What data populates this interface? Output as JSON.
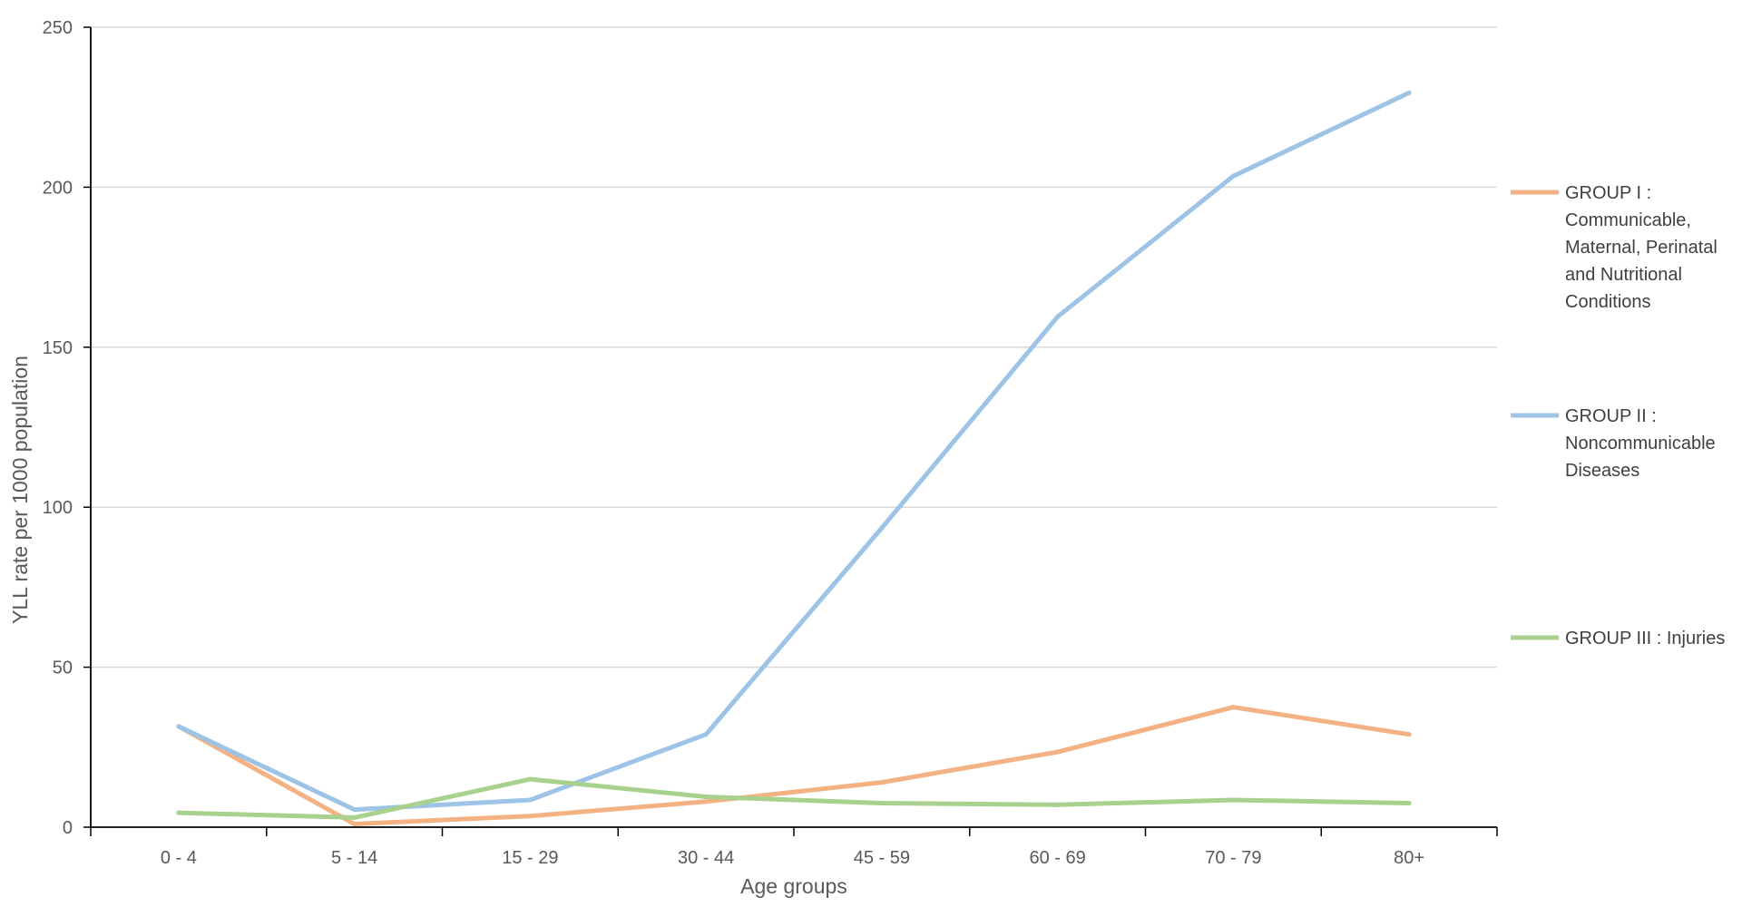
{
  "chart_data": {
    "type": "line",
    "title": "",
    "xlabel": "Age groups",
    "ylabel": "YLL rate per 1000 population",
    "categories": [
      "0 - 4",
      "5 - 14",
      "15 - 29",
      "30 - 44",
      "45 - 59",
      "60 - 69",
      "70 - 79",
      "80+"
    ],
    "ylim": [
      0,
      250
    ],
    "yticks": [
      "0",
      "50",
      "100",
      "150",
      "200",
      "250"
    ],
    "grid": true,
    "legend_position": "right",
    "series": [
      {
        "name": "GROUP I : Communicable, Maternal, Perinatal and Nutritional Conditions",
        "legend_lines": [
          "GROUP I   :",
          "Communicable,",
          "Maternal, Perinatal",
          "and Nutritional",
          "Conditions"
        ],
        "color": "#F4B183",
        "values": [
          31.5,
          1.0,
          3.5,
          8.0,
          14.0,
          23.5,
          37.5,
          29.0
        ]
      },
      {
        "name": "GROUP II : Noncommunicable Diseases",
        "legend_lines": [
          "GROUP II  :",
          "Noncommunicable",
          "Diseases"
        ],
        "color": "#9DC3E6",
        "values": [
          31.5,
          5.5,
          8.5,
          29.0,
          93.5,
          159.5,
          203.5,
          229.5
        ]
      },
      {
        "name": "GROUP III : Injuries",
        "legend_lines": [
          "GROUP III : Injuries"
        ],
        "color": "#A9D18E",
        "values": [
          4.5,
          3.0,
          15.0,
          9.5,
          7.5,
          7.0,
          8.5,
          7.5
        ]
      }
    ]
  }
}
